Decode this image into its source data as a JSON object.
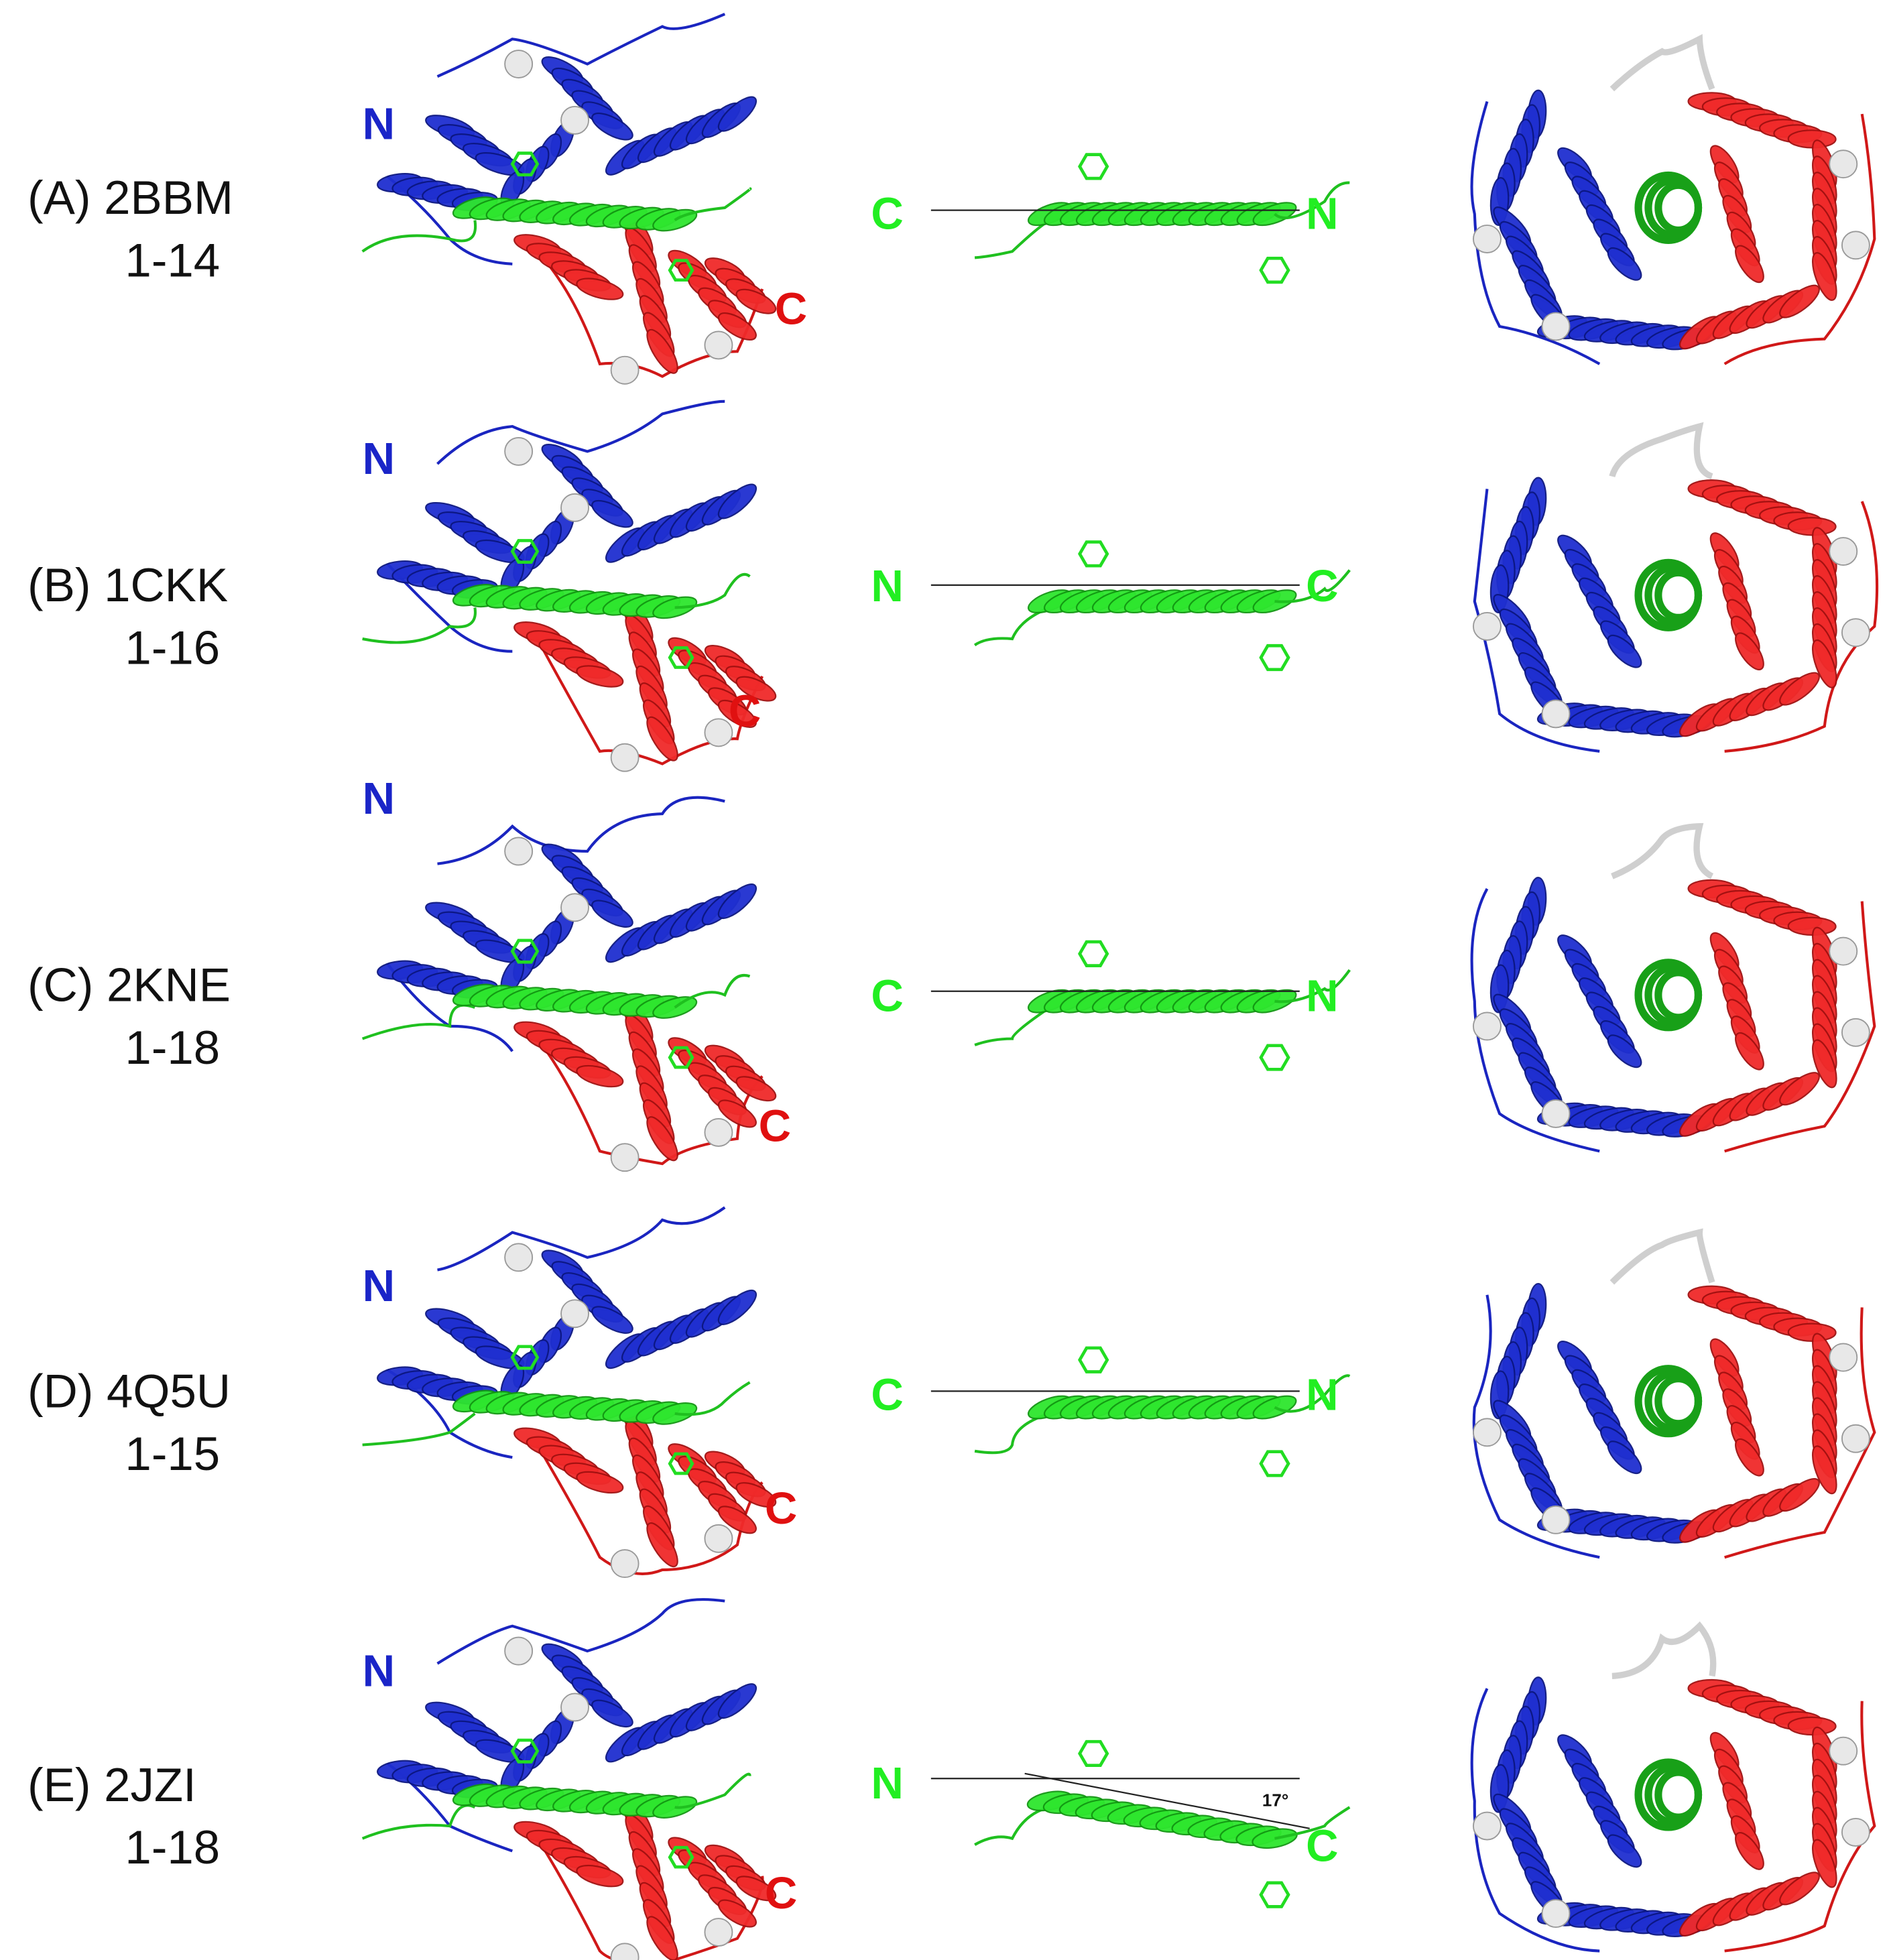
{
  "panels": [
    {
      "label": "(A) 2BBM",
      "range": "1-14",
      "left_n": "N",
      "left_c": "C",
      "middle_left": "C",
      "middle_right": "N"
    },
    {
      "label": "(B) 1CKK",
      "range": "1-16",
      "left_n": "N",
      "left_c": "C",
      "middle_left": "N",
      "middle_right": "C"
    },
    {
      "label": "(C) 2KNE",
      "range": "1-18",
      "left_n": "N",
      "left_c": "C",
      "middle_left": "C",
      "middle_right": "N"
    },
    {
      "label": "(D) 4Q5U",
      "range": "1-15",
      "left_n": "N",
      "left_c": "C",
      "middle_left": "C",
      "middle_right": "N"
    },
    {
      "label": "(E) 2JZI",
      "range": "1-18",
      "left_n": "N",
      "left_c": "C",
      "middle_left": "N",
      "middle_right": "C"
    }
  ],
  "angle_label": "17°"
}
